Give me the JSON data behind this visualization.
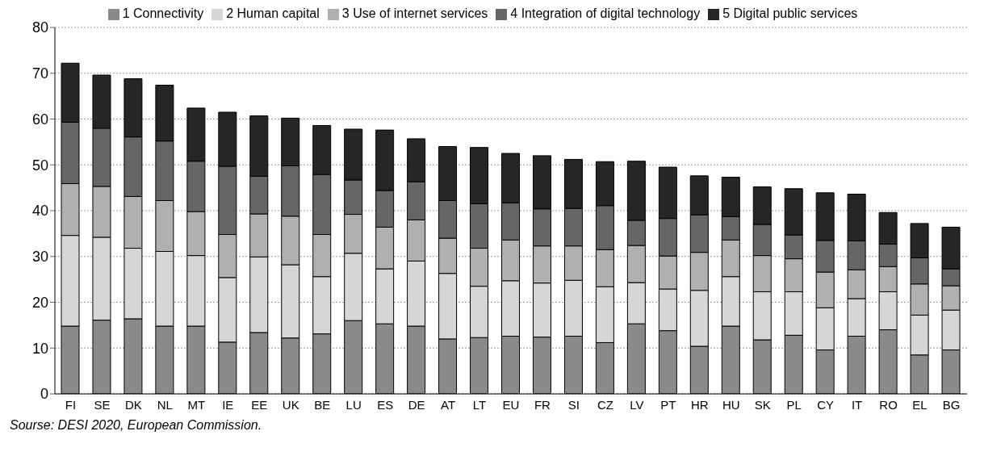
{
  "chart_data": {
    "type": "bar",
    "stacked": true,
    "categories": [
      "FI",
      "SE",
      "DK",
      "NL",
      "MT",
      "IE",
      "EE",
      "UK",
      "BE",
      "LU",
      "ES",
      "DE",
      "AT",
      "LT",
      "EU",
      "FR",
      "SI",
      "CZ",
      "LV",
      "PT",
      "HR",
      "HU",
      "SK",
      "PL",
      "CY",
      "IT",
      "RO",
      "EL",
      "BG"
    ],
    "series": [
      {
        "name": "1 Connectivity",
        "color": "#8a8a8a",
        "values": [
          14.8,
          16.1,
          16.4,
          14.8,
          14.8,
          11.3,
          13.4,
          12.2,
          13.1,
          16.0,
          15.3,
          14.8,
          12.0,
          12.3,
          12.6,
          12.4,
          12.6,
          11.2,
          15.3,
          13.8,
          10.4,
          14.8,
          11.8,
          12.8,
          9.6,
          12.6,
          14.0,
          8.5,
          9.6
        ]
      },
      {
        "name": "2 Human capital",
        "color": "#d6d6d6",
        "values": [
          19.8,
          18.1,
          15.4,
          16.3,
          15.4,
          14.1,
          16.5,
          16.0,
          12.5,
          14.7,
          12.0,
          14.2,
          14.3,
          11.2,
          12.1,
          11.8,
          12.2,
          12.2,
          9.0,
          9.1,
          12.2,
          10.8,
          10.5,
          9.5,
          9.2,
          8.2,
          8.3,
          8.7,
          8.7
        ]
      },
      {
        "name": "3 Use of internet services",
        "color": "#b0b0b0",
        "values": [
          11.3,
          11.1,
          11.3,
          11.1,
          9.6,
          9.4,
          9.4,
          10.6,
          9.2,
          8.5,
          9.1,
          9.0,
          7.7,
          8.3,
          8.9,
          8.1,
          7.5,
          8.1,
          8.1,
          7.2,
          8.3,
          8.0,
          7.9,
          7.2,
          7.8,
          6.3,
          5.5,
          6.8,
          5.3
        ]
      },
      {
        "name": "4 Integration of digital technology",
        "color": "#666666",
        "values": [
          13.4,
          12.7,
          13.0,
          13.0,
          11.0,
          14.9,
          8.2,
          11.0,
          13.1,
          7.5,
          8.0,
          8.3,
          8.2,
          9.7,
          8.1,
          8.1,
          8.2,
          9.6,
          5.5,
          8.2,
          8.2,
          5.1,
          6.8,
          5.2,
          6.9,
          6.3,
          4.9,
          5.7,
          3.7
        ]
      },
      {
        "name": "5 Digital public services",
        "color": "#262626",
        "values": [
          12.9,
          11.6,
          12.7,
          12.2,
          11.6,
          11.8,
          13.2,
          10.4,
          10.7,
          11.1,
          13.2,
          9.4,
          11.8,
          12.3,
          10.8,
          11.6,
          10.7,
          9.6,
          12.9,
          11.2,
          8.5,
          8.6,
          8.2,
          10.1,
          10.4,
          10.2,
          6.9,
          7.5,
          9.1
        ]
      }
    ],
    "ylim": [
      0,
      80
    ],
    "yticks": [
      0,
      10,
      20,
      30,
      40,
      50,
      60,
      70,
      80
    ],
    "grid": "y",
    "legend": "top",
    "annotations": [
      "Sourse: DESI 2020, European Commission."
    ]
  }
}
